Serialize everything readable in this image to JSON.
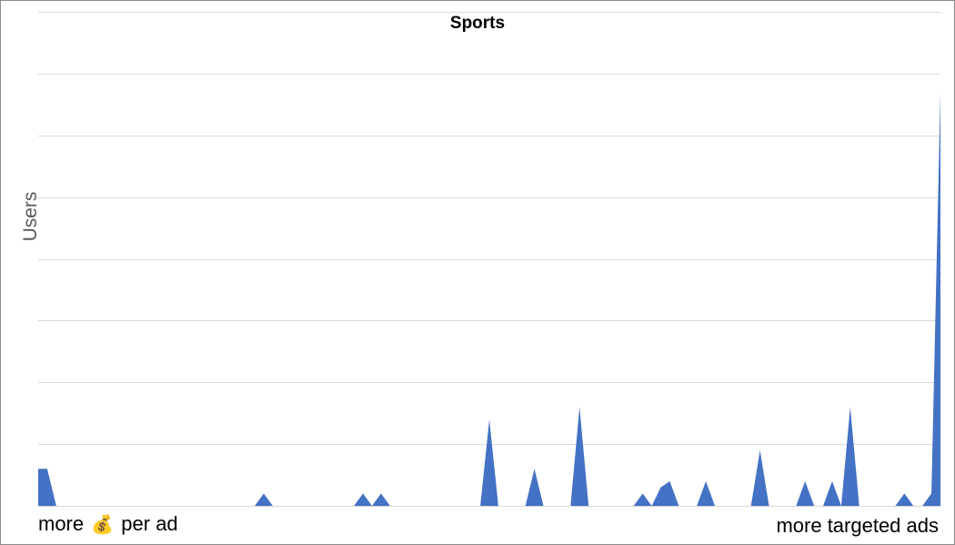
{
  "chart_data": {
    "type": "area",
    "title": "Sports",
    "ylabel": "Users",
    "xlabel": "",
    "x_left_label": "more 💰 per ad",
    "x_right_label": "more targeted ads",
    "x_left_parts": {
      "before": "more",
      "icon": "money-bag-icon",
      "after": "per ad"
    },
    "ylim": [
      0,
      8
    ],
    "grid": true,
    "x_count": 100,
    "series": [
      {
        "color": "#4472c4",
        "values": [
          0.6,
          0.6,
          0,
          0,
          0,
          0,
          0,
          0,
          0,
          0,
          0,
          0,
          0,
          0,
          0,
          0,
          0,
          0,
          0,
          0,
          0,
          0,
          0,
          0,
          0,
          0.2,
          0,
          0,
          0,
          0,
          0,
          0,
          0,
          0,
          0,
          0,
          0.2,
          0,
          0.2,
          0,
          0,
          0,
          0,
          0,
          0,
          0,
          0,
          0,
          0,
          0,
          1.4,
          0,
          0,
          0,
          0,
          0.6,
          0,
          0,
          0,
          0,
          1.6,
          0,
          0,
          0,
          0,
          0,
          0,
          0.2,
          0,
          0.3,
          0.4,
          0,
          0,
          0,
          0.4,
          0,
          0,
          0,
          0,
          0,
          0.9,
          0,
          0,
          0,
          0,
          0.4,
          0,
          0,
          0.4,
          0,
          1.6,
          0,
          0,
          0,
          0,
          0,
          0.2,
          0,
          0,
          0.2,
          6.7
        ]
      }
    ]
  }
}
